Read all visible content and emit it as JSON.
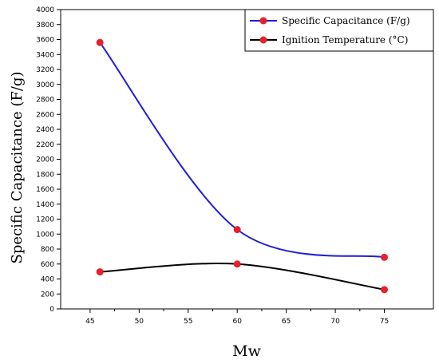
{
  "chart_data": {
    "type": "line",
    "xlabel": "Mw",
    "ylabel": "Specific Capacitance (F/g)",
    "xlim": [
      42,
      80
    ],
    "ylim": [
      0,
      4000
    ],
    "xticks": [
      45,
      50,
      55,
      60,
      65,
      70,
      75
    ],
    "yticks": [
      0,
      200,
      400,
      600,
      800,
      1000,
      1200,
      1400,
      1600,
      1800,
      2000,
      2200,
      2400,
      2600,
      2800,
      3000,
      3200,
      3400,
      3600,
      3800,
      4000
    ],
    "legend_position": "top-right",
    "grid": false,
    "series": [
      {
        "name": "Specific Capacitance (F/g)",
        "color": "#1f1fd6",
        "marker_color": "#e8202a",
        "x": [
          46,
          60,
          75
        ],
        "y": [
          3560,
          1060,
          690
        ]
      },
      {
        "name": "Ignition Temperature (°C)",
        "color": "#000000",
        "marker_color": "#e8202a",
        "x": [
          46,
          60,
          75
        ],
        "y": [
          495,
          600,
          258
        ]
      }
    ]
  }
}
